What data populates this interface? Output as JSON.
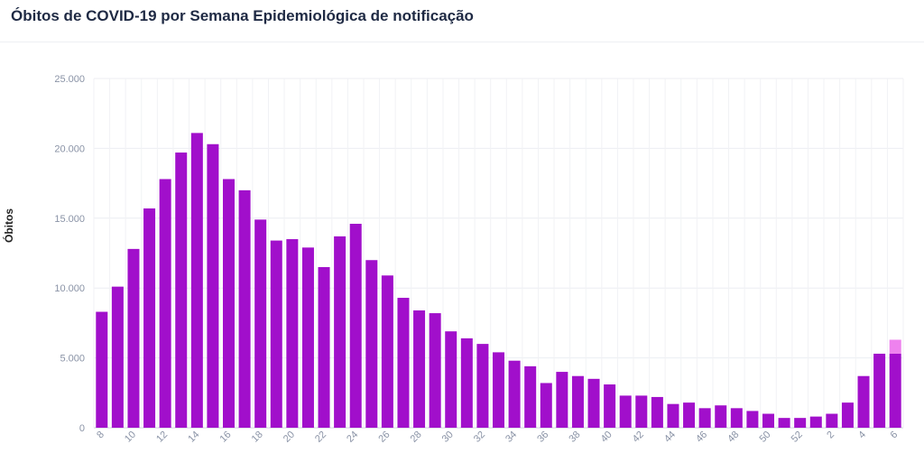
{
  "title": "Óbitos de COVID-19 por Semana Epidemiológica de notificação",
  "chart_data": {
    "type": "bar",
    "title": "Óbitos de COVID-19 por Semana Epidemiológica de notificação",
    "xlabel": "",
    "ylabel": "Óbitos",
    "ylim": [
      0,
      25000
    ],
    "yticks": [
      "0",
      "5.000",
      "10.000",
      "15.000",
      "20.000",
      "25.000"
    ],
    "ytick_values": [
      0,
      5000,
      10000,
      15000,
      20000,
      25000
    ],
    "grid": true,
    "categories": [
      "8",
      "9",
      "10",
      "11",
      "12",
      "13",
      "14",
      "15",
      "16",
      "17",
      "18",
      "19",
      "20",
      "21",
      "22",
      "23",
      "24",
      "25",
      "26",
      "27",
      "28",
      "29",
      "30",
      "31",
      "32",
      "33",
      "34",
      "35",
      "36",
      "37",
      "38",
      "39",
      "40",
      "41",
      "42",
      "43",
      "44",
      "45",
      "46",
      "47",
      "48",
      "49",
      "50",
      "51",
      "52",
      "1",
      "2",
      "3",
      "4",
      "5",
      "6"
    ],
    "xtick_labels": [
      "8",
      "10",
      "12",
      "14",
      "16",
      "18",
      "20",
      "22",
      "24",
      "26",
      "28",
      "30",
      "32",
      "34",
      "36",
      "38",
      "40",
      "42",
      "44",
      "46",
      "48",
      "50",
      "52",
      "2",
      "4",
      "6"
    ],
    "series": [
      {
        "color": "#a10fcb",
        "values": [
          8300,
          10100,
          12800,
          15700,
          17800,
          19700,
          21100,
          20300,
          17800,
          17000,
          14900,
          13400,
          13500,
          12900,
          11500,
          13700,
          14600,
          12000,
          10900,
          9300,
          8400,
          8200,
          6900,
          6400,
          6000,
          5400,
          4800,
          4400,
          3200,
          4000,
          3700,
          3500,
          3100,
          2300,
          2300,
          2200,
          1700,
          1800,
          1400,
          1600,
          1400,
          1200,
          1000,
          700,
          700,
          800,
          1000,
          1800,
          3700,
          5300,
          5300
        ]
      },
      {
        "color": "#ee82ee",
        "values": [
          0,
          0,
          0,
          0,
          0,
          0,
          0,
          0,
          0,
          0,
          0,
          0,
          0,
          0,
          0,
          0,
          0,
          0,
          0,
          0,
          0,
          0,
          0,
          0,
          0,
          0,
          0,
          0,
          0,
          0,
          0,
          0,
          0,
          0,
          0,
          0,
          0,
          0,
          0,
          0,
          0,
          0,
          0,
          0,
          0,
          0,
          0,
          0,
          0,
          0,
          1000
        ]
      }
    ]
  }
}
